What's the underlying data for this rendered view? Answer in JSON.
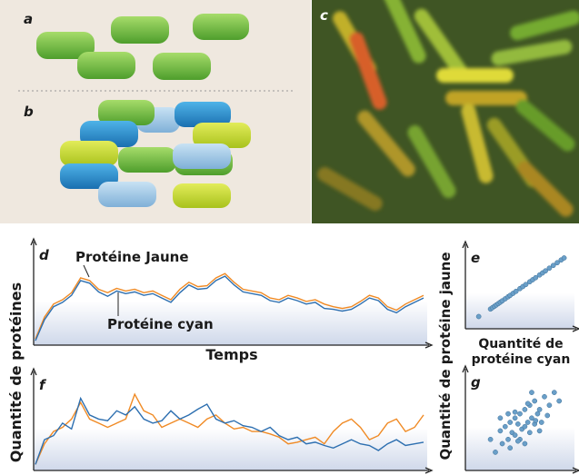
{
  "figure": {
    "panels": [
      "a",
      "b",
      "c"
    ]
  },
  "chart_data": [
    {
      "type": "line",
      "panel_label": "d",
      "x_label": "Temps",
      "y_label": "Quantité de protéines",
      "ylim": [
        0,
        100
      ],
      "series": [
        {
          "name": "Protéine Jaune",
          "color": "#f08a24",
          "values": [
            5,
            30,
            45,
            50,
            58,
            75,
            72,
            62,
            58,
            63,
            60,
            62,
            58,
            60,
            55,
            50,
            62,
            70,
            65,
            66,
            75,
            80,
            70,
            62,
            60,
            58,
            52,
            50,
            55,
            52,
            48,
            50,
            45,
            42,
            40,
            42,
            48,
            55,
            52,
            42,
            38,
            45,
            50,
            55
          ]
        },
        {
          "name": "Protéine cyan",
          "color": "#2d6fb0",
          "values": [
            3,
            27,
            42,
            47,
            55,
            72,
            69,
            59,
            54,
            60,
            57,
            59,
            55,
            57,
            52,
            47,
            58,
            67,
            62,
            63,
            72,
            77,
            67,
            59,
            57,
            55,
            49,
            47,
            52,
            49,
            45,
            47,
            40,
            39,
            37,
            39,
            45,
            52,
            49,
            39,
            35,
            42,
            47,
            52
          ]
        }
      ]
    },
    {
      "type": "line",
      "panel_label": "f",
      "ylim": [
        0,
        100
      ],
      "series": [
        {
          "color": "#f08a24",
          "values": [
            5,
            30,
            45,
            50,
            60,
            80,
            60,
            55,
            50,
            55,
            60,
            90,
            70,
            65,
            50,
            55,
            60,
            55,
            50,
            60,
            65,
            55,
            48,
            50,
            45,
            45,
            42,
            38,
            30,
            32,
            35,
            38,
            30,
            45,
            55,
            60,
            50,
            35,
            40,
            55,
            60,
            45,
            50,
            65
          ]
        },
        {
          "color": "#2d6fb0",
          "values": [
            5,
            35,
            40,
            55,
            48,
            85,
            65,
            60,
            58,
            70,
            65,
            75,
            60,
            55,
            58,
            70,
            60,
            65,
            72,
            78,
            60,
            55,
            58,
            52,
            50,
            45,
            50,
            40,
            35,
            38,
            30,
            32,
            28,
            25,
            30,
            35,
            30,
            28,
            22,
            30,
            35,
            28,
            30,
            32
          ]
        }
      ]
    },
    {
      "type": "scatter",
      "panel_label": "e",
      "x_label": "Quantité de protéine cyan",
      "y_label": "Quantité de protéine jaune",
      "color": "#6a9fc8",
      "xlim": [
        0,
        100
      ],
      "ylim": [
        0,
        100
      ],
      "x": [
        8,
        20,
        22,
        24,
        26,
        28,
        30,
        32,
        35,
        38,
        40,
        43,
        46,
        50,
        53,
        56,
        60,
        63,
        66,
        70,
        73,
        76,
        80,
        84,
        88,
        92,
        95
      ],
      "y": [
        10,
        21,
        23,
        25,
        27,
        29,
        31,
        33,
        36,
        39,
        41,
        44,
        47,
        51,
        54,
        57,
        61,
        64,
        67,
        71,
        74,
        77,
        81,
        85,
        89,
        93,
        96
      ]
    },
    {
      "type": "scatter",
      "panel_label": "g",
      "color": "#6a9fc8",
      "xlim": [
        0,
        100
      ],
      "ylim": [
        0,
        100
      ],
      "x": [
        20,
        25,
        30,
        32,
        35,
        38,
        40,
        40,
        42,
        45,
        45,
        48,
        50,
        50,
        52,
        55,
        55,
        58,
        60,
        60,
        62,
        65,
        65,
        68,
        70,
        72,
        75,
        78,
        80,
        85,
        30,
        45,
        55,
        62,
        70,
        38,
        48,
        58,
        66,
        90
      ],
      "y": [
        30,
        15,
        40,
        25,
        45,
        30,
        50,
        20,
        38,
        55,
        35,
        48,
        60,
        30,
        42,
        65,
        45,
        50,
        70,
        38,
        55,
        75,
        48,
        60,
        65,
        50,
        80,
        58,
        70,
        85,
        55,
        62,
        25,
        85,
        40,
        60,
        28,
        72,
        52,
        75
      ]
    }
  ]
}
